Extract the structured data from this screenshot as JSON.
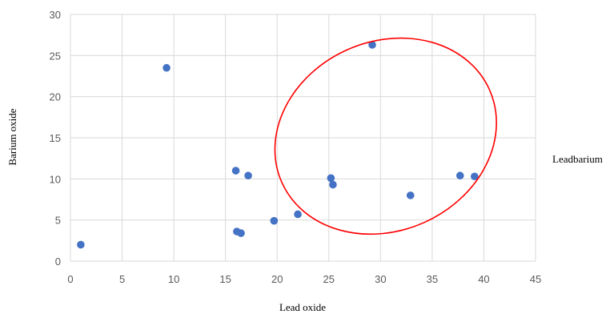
{
  "chart_data": {
    "type": "scatter",
    "title": "",
    "xlabel": "Lead oxide",
    "ylabel": "Barium oxide",
    "xlim": [
      0,
      45
    ],
    "ylim": [
      0,
      30
    ],
    "xticks": [
      0,
      5,
      10,
      15,
      20,
      25,
      30,
      35,
      40,
      45
    ],
    "yticks": [
      0,
      5,
      10,
      15,
      20,
      25,
      30
    ],
    "grid": true,
    "legend": "none",
    "points": [
      {
        "x": 1.0,
        "y": 2.0
      },
      {
        "x": 9.3,
        "y": 23.5
      },
      {
        "x": 16.0,
        "y": 11.0
      },
      {
        "x": 17.2,
        "y": 10.4
      },
      {
        "x": 16.1,
        "y": 3.6
      },
      {
        "x": 16.5,
        "y": 3.4
      },
      {
        "x": 19.7,
        "y": 4.9
      },
      {
        "x": 22.0,
        "y": 5.7
      },
      {
        "x": 25.2,
        "y": 10.1
      },
      {
        "x": 25.4,
        "y": 9.3
      },
      {
        "x": 29.2,
        "y": 26.3
      },
      {
        "x": 32.9,
        "y": 8.0
      },
      {
        "x": 37.7,
        "y": 10.4
      },
      {
        "x": 39.1,
        "y": 10.3
      }
    ],
    "annotation": {
      "text": "Leadbarium",
      "ellipse": {
        "cx": 30.5,
        "cy": 15.2,
        "rx": 11.0,
        "ry": 11.5,
        "rotation_deg": 24
      },
      "ellipse_color": "#ff0000"
    },
    "colors": {
      "marker": "#4472c4",
      "grid": "#d9d9d9",
      "tick_text": "#595959"
    }
  }
}
